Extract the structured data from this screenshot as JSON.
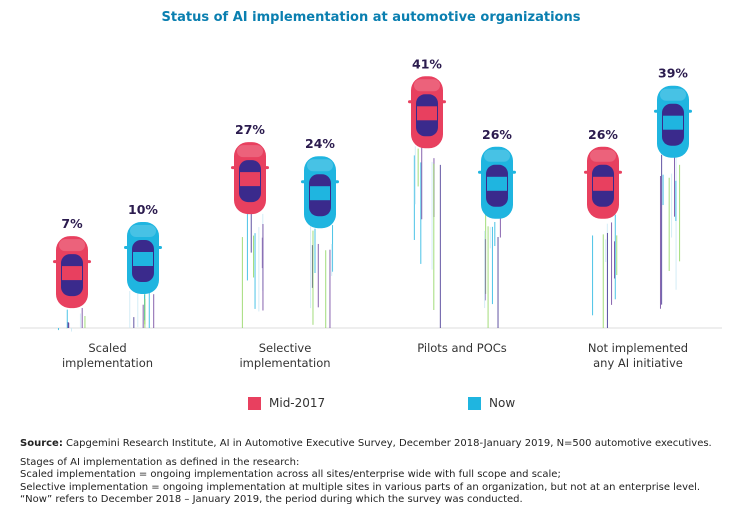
{
  "chart_data": {
    "type": "bar",
    "title": "Status of AI implementation at automotive organizations",
    "categories": [
      "Scaled implementation",
      "Selective implementation",
      "Pilots and POCs",
      "Not implemented any AI initiative"
    ],
    "category_lines": [
      [
        "Scaled",
        "implementation"
      ],
      [
        "Selective",
        "implementation"
      ],
      [
        "Pilots and POCs"
      ],
      [
        "Not implemented",
        "any AI initiative"
      ]
    ],
    "series": [
      {
        "name": "Mid-2017",
        "color": "#e8405f",
        "values": [
          7,
          27,
          41,
          26
        ]
      },
      {
        "name": "Now",
        "color": "#1fb5e0",
        "values": [
          10,
          24,
          26,
          39
        ]
      }
    ],
    "value_suffix": "%",
    "mark_style": "car pictograms",
    "legend_position": "bottom",
    "grid": false
  },
  "notes": {
    "source_label": "Source:",
    "source_text": " Capgemini Research Institute, AI in Automotive Executive Survey, December 2018-January 2019, N=500 automotive executives.",
    "lines": [
      "Stages of AI implementation as defined in the research:",
      "Scaled implementation = ongoing implementation across all sites/enterprise wide with full scope and scale;",
      "Selective implementation = ongoing implementation at multiple sites in various parts of an organization, but not at an enterprise level.",
      "“Now” refers to December 2018 – January 2019, the period during which the survey was conducted."
    ]
  }
}
